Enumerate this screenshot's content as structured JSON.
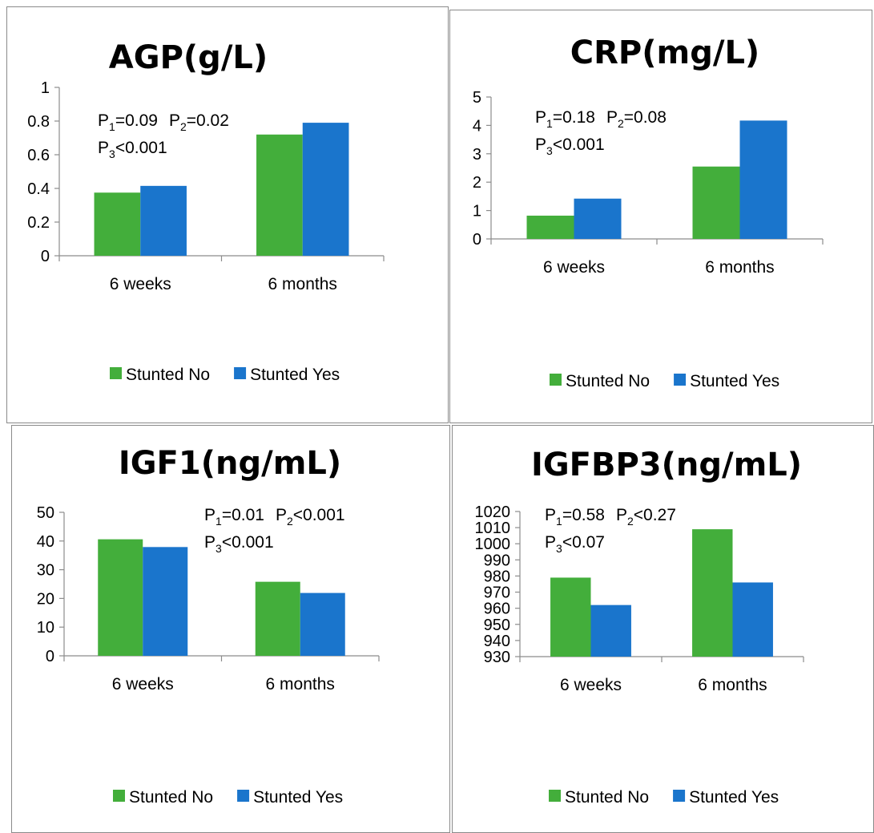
{
  "colors": {
    "stunted_no": "#43ae3b",
    "stunted_yes": "#1a75cc"
  },
  "chart_data": [
    {
      "type": "bar",
      "title": "AGP(g/L)",
      "categories": [
        "6 weeks",
        "6 months"
      ],
      "series": [
        {
          "name": "Stunted No",
          "values": [
            0.375,
            0.72
          ]
        },
        {
          "name": "Stunted Yes",
          "values": [
            0.415,
            0.79
          ]
        }
      ],
      "ylim": [
        0,
        1
      ],
      "yticks": [
        "0",
        "0.2",
        "0.4",
        "0.6",
        "0.8",
        "1"
      ],
      "annotation": {
        "p1_label": "P",
        "p1_sub": "1",
        "p1_value": "=0.09",
        "p2_label": "P",
        "p2_sub": "2",
        "p2_value": "=0.02",
        "p3_label": "P",
        "p3_sub": "3",
        "p3_value": "<0.001"
      },
      "legend": "bottom"
    },
    {
      "type": "bar",
      "title": "CRP(mg/L)",
      "categories": [
        "6 weeks",
        "6 months"
      ],
      "series": [
        {
          "name": "Stunted No",
          "values": [
            0.82,
            2.55
          ]
        },
        {
          "name": "Stunted Yes",
          "values": [
            1.42,
            4.17
          ]
        }
      ],
      "ylim": [
        0,
        5
      ],
      "yticks": [
        "0",
        "1",
        "2",
        "3",
        "4",
        "5"
      ],
      "annotation": {
        "p1_label": "P",
        "p1_sub": "1",
        "p1_value": "=0.18",
        "p2_label": "P",
        "p2_sub": "2",
        "p2_value": "=0.08",
        "p3_label": "P",
        "p3_sub": "3",
        "p3_value": "<0.001"
      },
      "legend": "bottom"
    },
    {
      "type": "bar",
      "title": "IGF1(ng/mL)",
      "categories": [
        "6 weeks",
        "6 months"
      ],
      "series": [
        {
          "name": "Stunted No",
          "values": [
            40.6,
            25.8
          ]
        },
        {
          "name": "Stunted Yes",
          "values": [
            37.9,
            21.9
          ]
        }
      ],
      "ylim": [
        0,
        50
      ],
      "yticks": [
        "0",
        "10",
        "20",
        "30",
        "40",
        "50"
      ],
      "annotation": {
        "p1_label": "P",
        "p1_sub": "1",
        "p1_value": "=0.01",
        "p2_label": "P",
        "p2_sub": "2",
        "p2_value": "<0.001",
        "p3_label": "P",
        "p3_sub": "3",
        "p3_value": "<0.001"
      },
      "legend": "bottom"
    },
    {
      "type": "bar",
      "title": "IGFBP3(ng/mL)",
      "categories": [
        "6 weeks",
        "6 months"
      ],
      "series": [
        {
          "name": "Stunted No",
          "values": [
            979,
            1009
          ]
        },
        {
          "name": "Stunted Yes",
          "values": [
            962,
            976
          ]
        }
      ],
      "ylim": [
        930,
        1020
      ],
      "yticks": [
        "930",
        "940",
        "950",
        "960",
        "970",
        "980",
        "990",
        "1000",
        "1010",
        "1020"
      ],
      "annotation": {
        "p1_label": "P",
        "p1_sub": "1",
        "p1_value": "=0.58",
        "p2_label": "P",
        "p2_sub": "2",
        "p2_value": "<0.27",
        "p3_label": "P",
        "p3_sub": "3",
        "p3_value": "<0.07"
      },
      "legend": "bottom"
    }
  ]
}
